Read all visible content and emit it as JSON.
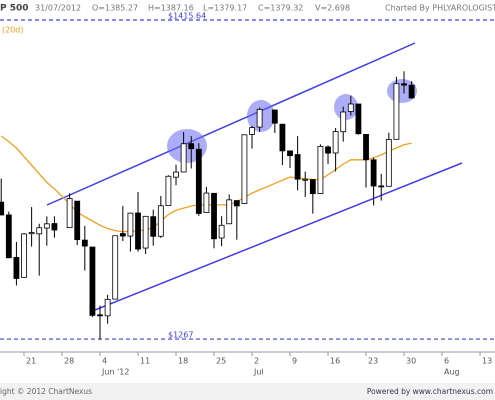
{
  "chart_data": {
    "type": "candlestick",
    "title": "P 500",
    "date": "31/07/2012",
    "stats": [
      "O=1385.27",
      "H=1387.16",
      "L=1379.17",
      "C=1379.32",
      "V=2.698"
    ],
    "credit": "Charted By PHLYAROLOGIST",
    "ma_label": "(20d)",
    "footer_left": "ight © 2012 ChartNexus",
    "footer_right": "Powered by www.chartnexus.com",
    "up_color": "#ffffff",
    "down_color": "#000000",
    "ma_color": "#f0a020",
    "annotation_color": "#4040e0",
    "xlim": [
      -0.16,
      64.97
    ],
    "ylim": [
      1261.9,
      1424.96
    ],
    "xticks": [
      {
        "value": 3,
        "label": "21"
      },
      {
        "value": 8,
        "label": "28"
      },
      {
        "value": 13,
        "label": "4"
      },
      {
        "value": 18,
        "label": "11"
      },
      {
        "value": 23,
        "label": "18"
      },
      {
        "value": 28,
        "label": "25"
      },
      {
        "value": 33,
        "label": "2"
      },
      {
        "value": 38,
        "label": "9"
      },
      {
        "value": 43,
        "label": "16"
      },
      {
        "value": 48,
        "label": "23"
      },
      {
        "value": 53,
        "label": "30"
      },
      {
        "value": 58,
        "label": "6"
      },
      {
        "value": 63,
        "label": "13"
      }
    ],
    "month_labels": [
      {
        "value": 13,
        "label": "Jun '12"
      },
      {
        "value": 33,
        "label": "Jul"
      },
      {
        "value": 58,
        "label": "Aug"
      }
    ],
    "levels": [
      {
        "value": 1415.64,
        "label": "$1415.64"
      },
      {
        "value": 1267,
        "label": "$1267"
      }
    ],
    "x": [
      0,
      1,
      2,
      3,
      4,
      5,
      6,
      7,
      9,
      10,
      11,
      12,
      13,
      14,
      15,
      16,
      17,
      18,
      19,
      20,
      21,
      22,
      23,
      24,
      25,
      26,
      27,
      28,
      29,
      30,
      31,
      32,
      33,
      34,
      36,
      37,
      38,
      39,
      40,
      41,
      42,
      43,
      44,
      45,
      46,
      47,
      48,
      49,
      50,
      51,
      52,
      53,
      54
    ],
    "open": [
      1330.78,
      1324.82,
      1305.05,
      1295.73,
      1316.09,
      1316.02,
      1318.72,
      1320.81,
      1318.9,
      1331.25,
      1313.09,
      1309.87,
      1278.29,
      1277.82,
      1285.61,
      1316.15,
      1314.99,
      1325.72,
      1309.4,
      1324.02,
      1314.88,
      1329.19,
      1342.42,
      1344.83,
      1358.04,
      1355.43,
      1325.92,
      1334.9,
      1314.09,
      1320.71,
      1331.52,
      1330.12,
      1362.33,
      1365.75,
      1373.72,
      1367.09,
      1354.66,
      1352.96,
      1341.4,
      1341.29,
      1334.81,
      1356.5,
      1353.68,
      1363.58,
      1373.01,
      1376.51,
      1362.34,
      1350.52,
      1338.35,
      1338.17,
      1360.05,
      1385.94,
      1385.27
    ],
    "high": [
      1341.78,
      1326.36,
      1312.24,
      1316.39,
      1328.49,
      1320.71,
      1324.14,
      1324.2,
      1334.93,
      1331.25,
      1319.74,
      1309.87,
      1282.55,
      1287.62,
      1315.13,
      1329.05,
      1325.81,
      1335.52,
      1324.31,
      1327.28,
      1333.68,
      1343.32,
      1348.22,
      1363.46,
      1361.57,
      1358.27,
      1337.82,
      1334.9,
      1324.24,
      1334.4,
      1331.52,
      1362.17,
      1366.35,
      1374.81,
      1373.85,
      1367.09,
      1354.87,
      1361.54,
      1345.0,
      1341.29,
      1357.7,
      1357.26,
      1365.36,
      1375.26,
      1380.39,
      1376.51,
      1362.34,
      1351.53,
      1343.98,
      1363.13,
      1389.19,
      1391.74,
      1387.16
    ],
    "low": [
      1324.79,
      1304.86,
      1291.98,
      1295.73,
      1310.04,
      1296.53,
      1310.5,
      1314.23,
      1318.9,
      1310.76,
      1298.9,
      1277.25,
      1266.74,
      1274.16,
      1285.61,
      1312.68,
      1307.77,
      1307.73,
      1306.62,
      1310.51,
      1314.14,
      1329.19,
      1338.64,
      1344.83,
      1346.45,
      1324.41,
      1325.92,
      1309.27,
      1310.3,
      1320.71,
      1313.29,
      1330.12,
      1355.7,
      1363.53,
      1363.02,
      1348.03,
      1346.65,
      1336.27,
      1333.25,
      1325.41,
      1334.81,
      1348.51,
      1345.07,
      1358.96,
      1371.21,
      1362.19,
      1337.56,
      1329.24,
      1331.5,
      1338.17,
      1360.05,
      1381.37,
      1379.17
    ],
    "close": [
      1324.8,
      1304.86,
      1295.22,
      1315.99,
      1316.63,
      1318.86,
      1320.68,
      1317.82,
      1332.42,
      1313.32,
      1310.33,
      1278.04,
      1278.18,
      1285.5,
      1315.13,
      1314.99,
      1325.66,
      1308.93,
      1324.18,
      1314.88,
      1329.1,
      1342.84,
      1344.78,
      1357.98,
      1355.69,
      1325.51,
      1335.02,
      1313.72,
      1319.99,
      1331.85,
      1329.04,
      1362.16,
      1365.51,
      1374.02,
      1367.58,
      1354.68,
      1352.46,
      1341.47,
      1341.45,
      1334.76,
      1356.78,
      1353.64,
      1363.67,
      1372.78,
      1376.51,
      1362.66,
      1350.52,
      1338.31,
      1337.89,
      1360.02,
      1385.97,
      1385.3,
      1379.32
    ],
    "ma": [
      1361.6,
      1359,
      1356,
      1352,
      1348,
      1344,
      1340,
      1337,
      1330,
      1326,
      1324,
      1322,
      1320,
      1318.5,
      1317.5,
      1317,
      1317.2,
      1317.5,
      1317.8,
      1319,
      1322,
      1325,
      1327,
      1328,
      1329,
      1329.5,
      1329.5,
      1329.5,
      1329.5,
      1329.5,
      1331,
      1333,
      1335,
      1336.5,
      1339.5,
      1341,
      1342.5,
      1342,
      1341.7,
      1341.4,
      1341.3,
      1343.5,
      1346,
      1348.5,
      1350.5,
      1350.5,
      1350.5,
      1351.5,
      1352.8,
      1354.5,
      1356,
      1357.5,
      1358.3
    ]
  }
}
